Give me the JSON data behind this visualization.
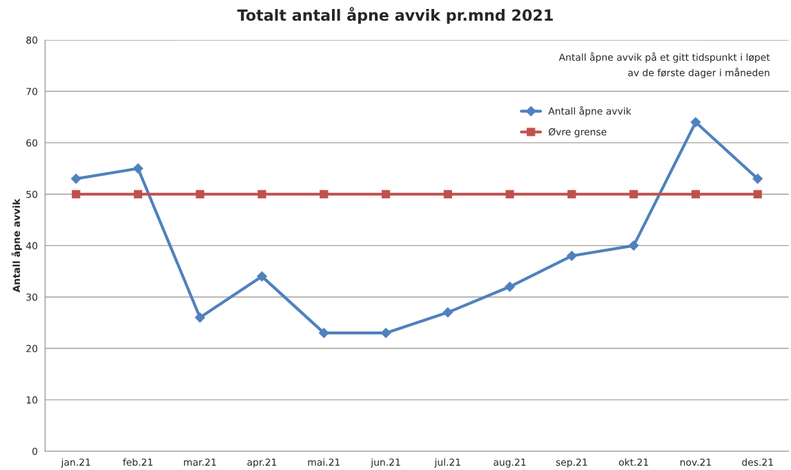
{
  "chart_data": {
    "type": "line",
    "title": "Totalt antall åpne avvik pr.mnd 2021",
    "ylabel": "Antall åpne avvik",
    "categories": [
      "jan.21",
      "feb.21",
      "mar.21",
      "apr.21",
      "mai.21",
      "jun.21",
      "jul.21",
      "aug.21",
      "sep.21",
      "okt.21",
      "nov.21",
      "des.21"
    ],
    "series": [
      {
        "name": "Antall åpne avvik",
        "color": "#4f81bd",
        "marker": "diamond",
        "values": [
          53,
          55,
          26,
          34,
          23,
          23,
          27,
          32,
          38,
          40,
          64,
          53
        ]
      },
      {
        "name": "Øvre grense",
        "color": "#c0504d",
        "marker": "square",
        "values": [
          50,
          50,
          50,
          50,
          50,
          50,
          50,
          50,
          50,
          50,
          50,
          50
        ]
      }
    ],
    "ylim": [
      0,
      80
    ],
    "yticks": [
      0,
      10,
      20,
      30,
      40,
      50,
      60,
      70,
      80
    ],
    "grid": "y",
    "legend": "top right",
    "line_style": "solid",
    "annotations": [
      "Antall åpne avvik på et gitt tidspunkt i løpet\nav de første dager i måneden"
    ]
  }
}
